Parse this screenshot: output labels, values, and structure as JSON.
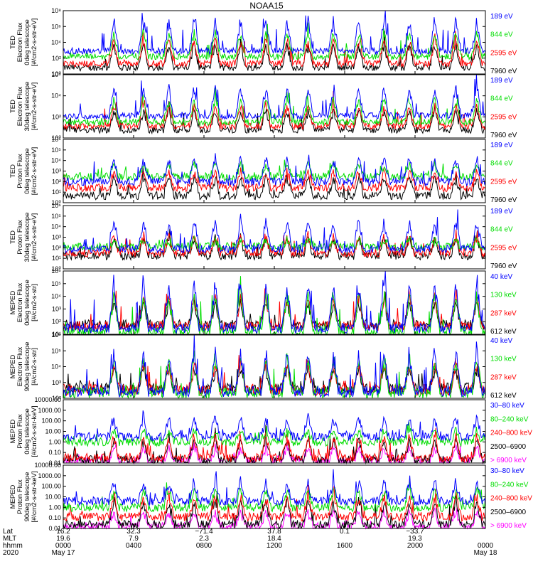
{
  "title": "NOAA15",
  "chart_data": {
    "type": "line",
    "panels": [
      {
        "ylabel": [
          "TED",
          "Electron Flux",
          "0deg telescope",
          "[#/cm2-s-str-eV]"
        ],
        "yticks": [
          "10⁰",
          "10²",
          "10⁴",
          "10⁶",
          "10⁸"
        ],
        "series": [
          {
            "name": "7960 eV",
            "color": "#000000",
            "base": 0.8,
            "peak": 4.2
          },
          {
            "name": "2595 eV",
            "color": "#ff0000",
            "base": 1.3,
            "peak": 4.8
          },
          {
            "name": "844 eV",
            "color": "#00dd00",
            "base": 2.2,
            "peak": 5.8
          },
          {
            "name": "189 eV",
            "color": "#0000ff",
            "base": 2.9,
            "peak": 7.4
          }
        ],
        "ylim": [
          0,
          8
        ]
      },
      {
        "ylabel": [
          "TED",
          "Electron Flux",
          "30deg telescope",
          "[#/cm2-s-str-eV]"
        ],
        "yticks": [
          "10⁰",
          "10²",
          "10⁴",
          "10⁶"
        ],
        "series": [
          {
            "name": "7960 eV",
            "color": "#000000",
            "base": 1.0,
            "peak": 4.0
          },
          {
            "name": "2595 eV",
            "color": "#ff0000",
            "base": 1.5,
            "peak": 4.6
          },
          {
            "name": "844 eV",
            "color": "#00dd00",
            "base": 2.0,
            "peak": 5.4
          },
          {
            "name": "189 eV",
            "color": "#0000ff",
            "base": 2.8,
            "peak": 6.9
          }
        ],
        "ylim": [
          0,
          8
        ]
      },
      {
        "ylabel": [
          "TED",
          "Proton Flux",
          "0deg telescope",
          "[#/cm2-s-str-eV]"
        ],
        "yticks": [
          "10⁰",
          "10¹",
          "10²",
          "10³",
          "10⁴",
          "10⁵",
          "10⁶"
        ],
        "series": [
          {
            "name": "7960 eV",
            "color": "#000000",
            "base": 0.4,
            "peak": 2.6
          },
          {
            "name": "2595 eV",
            "color": "#ff0000",
            "base": 1.2,
            "peak": 3.1
          },
          {
            "name": "844 eV",
            "color": "#00dd00",
            "base": 2.3,
            "peak": 3.9
          },
          {
            "name": "189 eV",
            "color": "#0000ff",
            "base": 1.8,
            "peak": 4.6
          }
        ],
        "ylim": [
          -0.3,
          6
        ]
      },
      {
        "ylabel": [
          "TED",
          "Proton Flux",
          "30deg telescope",
          "[#/cm2-s-str-eV]"
        ],
        "yticks": [
          "10⁰",
          "10¹",
          "10²",
          "10³",
          "10⁴",
          "10⁵",
          "10⁶"
        ],
        "series": [
          {
            "name": "7960 eV",
            "color": "#000000",
            "base": 1.0,
            "peak": 3.1
          },
          {
            "name": "2595 eV",
            "color": "#ff0000",
            "base": 1.3,
            "peak": 3.2
          },
          {
            "name": "844 eV",
            "color": "#00dd00",
            "base": 1.9,
            "peak": 2.7
          },
          {
            "name": "189 eV",
            "color": "#0000ff",
            "base": 1.7,
            "peak": 5.0
          }
        ],
        "ylim": [
          -0.3,
          6
        ]
      },
      {
        "ylabel": [
          "MEPED",
          "Electron Flux",
          "0deg telescope",
          "[#/cm2-s-str]"
        ],
        "yticks": [
          "10¹",
          "10²",
          "10³",
          "10⁴",
          "10⁵",
          "10⁶"
        ],
        "series": [
          {
            "name": "612 keV",
            "color": "#000000",
            "base": 1.6,
            "peak": 3.7
          },
          {
            "name": "287 keV",
            "color": "#ff0000",
            "base": 1.5,
            "peak": 4.3
          },
          {
            "name": "130 keV",
            "color": "#00dd00",
            "base": 1.0,
            "peak": 4.6
          },
          {
            "name": "40 keV",
            "color": "#0000ff",
            "base": 1.3,
            "peak": 5.6
          }
        ],
        "ylim": [
          0.8,
          6
        ]
      },
      {
        "ylabel": [
          "MEPED",
          "Electron Flux",
          "90deg telescope",
          "[#/cm2-s-str]"
        ],
        "yticks": [
          "10²",
          "10³",
          "10⁴",
          "10⁵",
          "10⁶"
        ],
        "series": [
          {
            "name": "612 keV",
            "color": "#000000",
            "base": 2.2,
            "peak": 3.9
          },
          {
            "name": "287 keV",
            "color": "#ff0000",
            "base": 2.1,
            "peak": 4.3
          },
          {
            "name": "130 keV",
            "color": "#00dd00",
            "base": 1.9,
            "peak": 4.8
          },
          {
            "name": "40 keV",
            "color": "#0000ff",
            "base": 2.0,
            "peak": 5.3
          }
        ],
        "ylim": [
          1.5,
          6
        ]
      },
      {
        "ylabel": [
          "MEPED",
          "Proton Flux",
          "0deg telescope",
          "[#/cm2-s-str-keV]"
        ],
        "yticks": [
          "0.01",
          "0.10",
          "1.00",
          "10.00",
          "100.00",
          "1000.00",
          "10000.00"
        ],
        "series": [
          {
            "name": "> 6900 keV",
            "color": "#ff00ff",
            "base": -1.8,
            "peak": -0.3
          },
          {
            "name": "2500–6900",
            "color": "#000000",
            "base": -1.7,
            "peak": 0.6
          },
          {
            "name": "240–800 keV",
            "color": "#ff0000",
            "base": -1.5,
            "peak": 0.9
          },
          {
            "name": "80–240 keV",
            "color": "#00dd00",
            "base": 0.0,
            "peak": 1.3
          },
          {
            "name": "30–80 keV",
            "color": "#0000ff",
            "base": 0.5,
            "peak": 2.6
          }
        ],
        "ylim": [
          -2,
          4
        ]
      },
      {
        "ylabel": [
          "MEPED",
          "Proton Flux",
          "90deg telescope",
          "[#/cm2-s-str-keV]"
        ],
        "yticks": [
          "0.01",
          "0.10",
          "1.00",
          "10.00",
          "100.00",
          "1000.00",
          "10000.00"
        ],
        "series": [
          {
            "name": "> 6900 keV",
            "color": "#ff00ff",
            "base": -1.8,
            "peak": -0.2
          },
          {
            "name": "2500–6900",
            "color": "#000000",
            "base": -1.6,
            "peak": 1.0
          },
          {
            "name": "240–800 keV",
            "color": "#ff0000",
            "base": -0.9,
            "peak": 1.3
          },
          {
            "name": "80–240 keV",
            "color": "#00dd00",
            "base": 0.0,
            "peak": 2.0
          },
          {
            "name": "30–80 keV",
            "color": "#0000ff",
            "base": 0.6,
            "peak": 2.7
          }
        ],
        "ylim": [
          -2,
          4
        ]
      }
    ],
    "orbit_peaks": [
      0.12,
      0.19,
      0.25,
      0.31,
      0.36,
      0.42,
      0.48,
      0.53,
      0.58,
      0.64,
      0.7,
      0.76,
      0.82,
      0.88,
      0.93,
      0.98
    ],
    "x_axis": {
      "row_labels": [
        "Lat",
        "MLT",
        "hhmm",
        "2020"
      ],
      "ticks": [
        {
          "lat": "16.2",
          "mlt": "19.6",
          "hhmm": "0000",
          "date": "May 17"
        },
        {
          "lat": "32.3",
          "mlt": "7.9",
          "hhmm": "0400",
          "date": ""
        },
        {
          "lat": "−71.4",
          "mlt": "2.3",
          "hhmm": "0800",
          "date": ""
        },
        {
          "lat": "37.8",
          "mlt": "18.4",
          "hhmm": "1200",
          "date": ""
        },
        {
          "lat": "0.1",
          "mlt": "",
          "hhmm": "1600",
          "date": ""
        },
        {
          "lat": "−33.7",
          "mlt": "19.3",
          "hhmm": "2000",
          "date": ""
        },
        {
          "lat": "",
          "mlt": "",
          "hhmm": "0000",
          "date": "May 18"
        }
      ]
    }
  }
}
